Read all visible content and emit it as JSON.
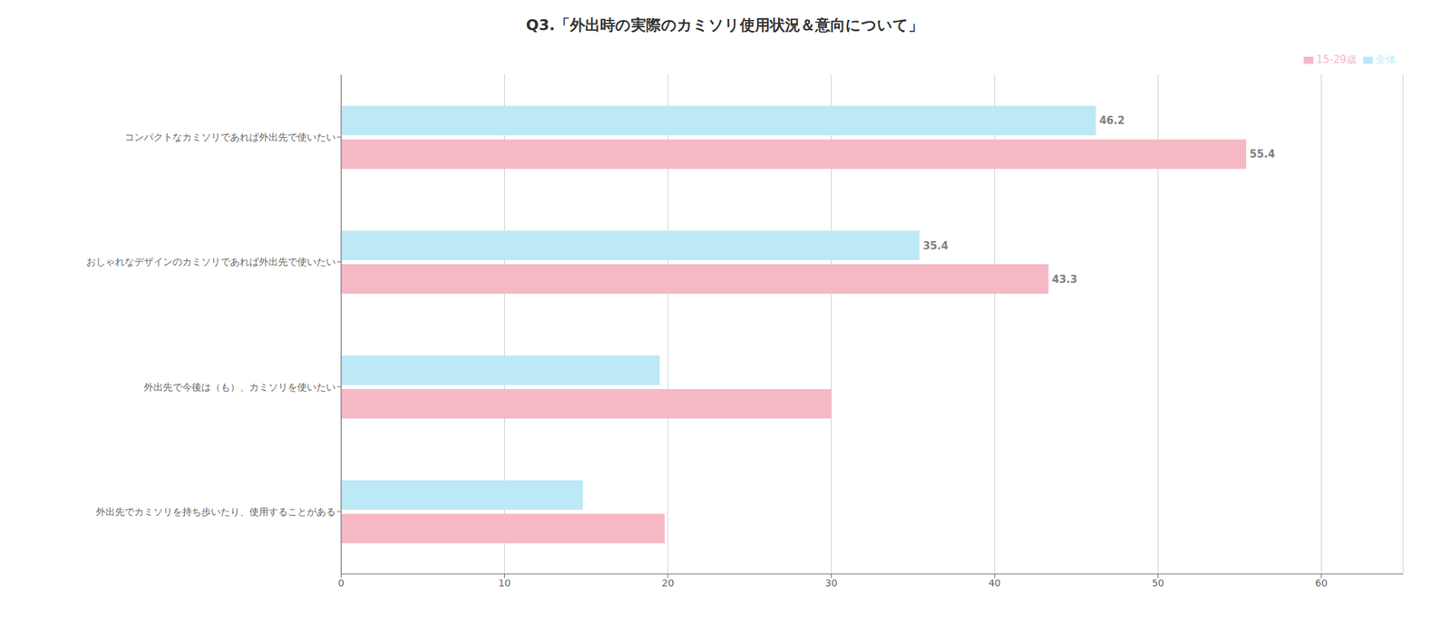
{
  "chart_data": {
    "type": "bar",
    "orientation": "horizontal",
    "title": "Q3.「外出時の実際のカミソリ使用状況＆意向について」",
    "categories": [
      "外出先でカミソリを持ち歩いたり、使用することがある",
      "外出先で今後は（も）、カミソリを使いたい",
      "おしゃれなデザインのカミソリであれば外出先で使いたい",
      "コンパクトなカミソリであれば外出先で使いたい"
    ],
    "series": [
      {
        "name": "全体",
        "color": "#BDE8F5",
        "values": [
          14.8,
          19.5,
          35.4,
          46.2
        ],
        "value_labels": [
          null,
          null,
          35.4,
          46.2
        ]
      },
      {
        "name": "15-29歳",
        "color": "#F5B8C4",
        "values": [
          19.8,
          30.0,
          43.3,
          55.4
        ],
        "value_labels": [
          null,
          null,
          43.3,
          55.4
        ]
      }
    ],
    "xlim": [
      0,
      65
    ],
    "xticks": [
      0,
      10,
      20,
      30,
      40,
      50,
      60
    ],
    "grid": true,
    "legend": "top-right"
  }
}
